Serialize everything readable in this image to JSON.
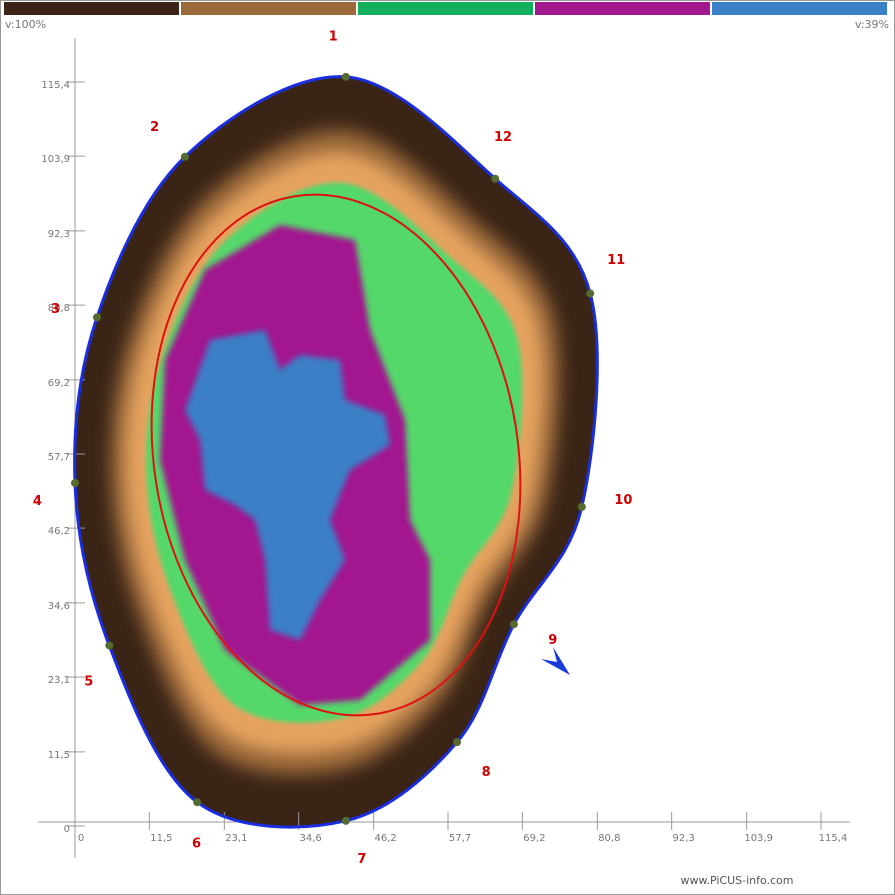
{
  "chart_data": {
    "type": "tomogram",
    "scale_colors": [
      "#3a2416",
      "#9b693a",
      "#12b05c",
      "#a2188f",
      "#3b7fc6"
    ],
    "scale_max_label": "v:100%",
    "scale_min_label": "v:39%",
    "xlim": [
      0,
      115.4
    ],
    "ylim": [
      0,
      115.4
    ],
    "xticks": [
      0,
      {
        "value": 11.5,
        "label": "11,5"
      },
      {
        "value": 23.1,
        "label": "23,1"
      },
      {
        "value": 34.6,
        "label": "34,6"
      },
      {
        "value": 46.2,
        "label": "46,2"
      },
      {
        "value": 57.7,
        "label": "57,7"
      },
      {
        "value": 69.2,
        "label": "69,2"
      },
      {
        "value": 80.8,
        "label": "80,8"
      },
      {
        "value": 92.3,
        "label": "92,3"
      },
      {
        "value": 103.9,
        "label": "103,9"
      },
      {
        "value": 115.4,
        "label": "115,4"
      }
    ],
    "yticks": [
      0,
      {
        "value": 11.5,
        "label": "11,5"
      },
      {
        "value": 23.1,
        "label": "23,1"
      },
      {
        "value": 34.6,
        "label": "34,6"
      },
      {
        "value": 46.2,
        "label": "46,2"
      },
      {
        "value": 57.7,
        "label": "57,7"
      },
      {
        "value": 69.2,
        "label": "69,2"
      },
      {
        "value": 80.8,
        "label": "80,8"
      },
      {
        "value": 92.3,
        "label": "92,3"
      },
      {
        "value": 103.9,
        "label": "103,9"
      },
      {
        "value": 115.4,
        "label": "115,4"
      }
    ],
    "sensors": [
      {
        "label": "1",
        "x": 41.9,
        "y": 116.2
      },
      {
        "label": "2",
        "x": 17.0,
        "y": 103.8
      },
      {
        "label": "3",
        "x": 3.4,
        "y": 78.9
      },
      {
        "label": "4",
        "x": 0,
        "y": 53.2
      },
      {
        "label": "5",
        "x": 5.3,
        "y": 28.0
      },
      {
        "label": "6",
        "x": 18.9,
        "y": 3.7
      },
      {
        "label": "7",
        "x": 41.9,
        "y": 0.8
      },
      {
        "label": "8",
        "x": 59.1,
        "y": 13.0
      },
      {
        "label": "9",
        "x": 67.9,
        "y": 31.3
      },
      {
        "label": "10",
        "x": 78.4,
        "y": 49.5
      },
      {
        "label": "11",
        "x": 79.7,
        "y": 82.6
      },
      {
        "label": "12",
        "x": 65.0,
        "y": 100.4
      }
    ],
    "footer": "www.PiCUS-info.com"
  }
}
